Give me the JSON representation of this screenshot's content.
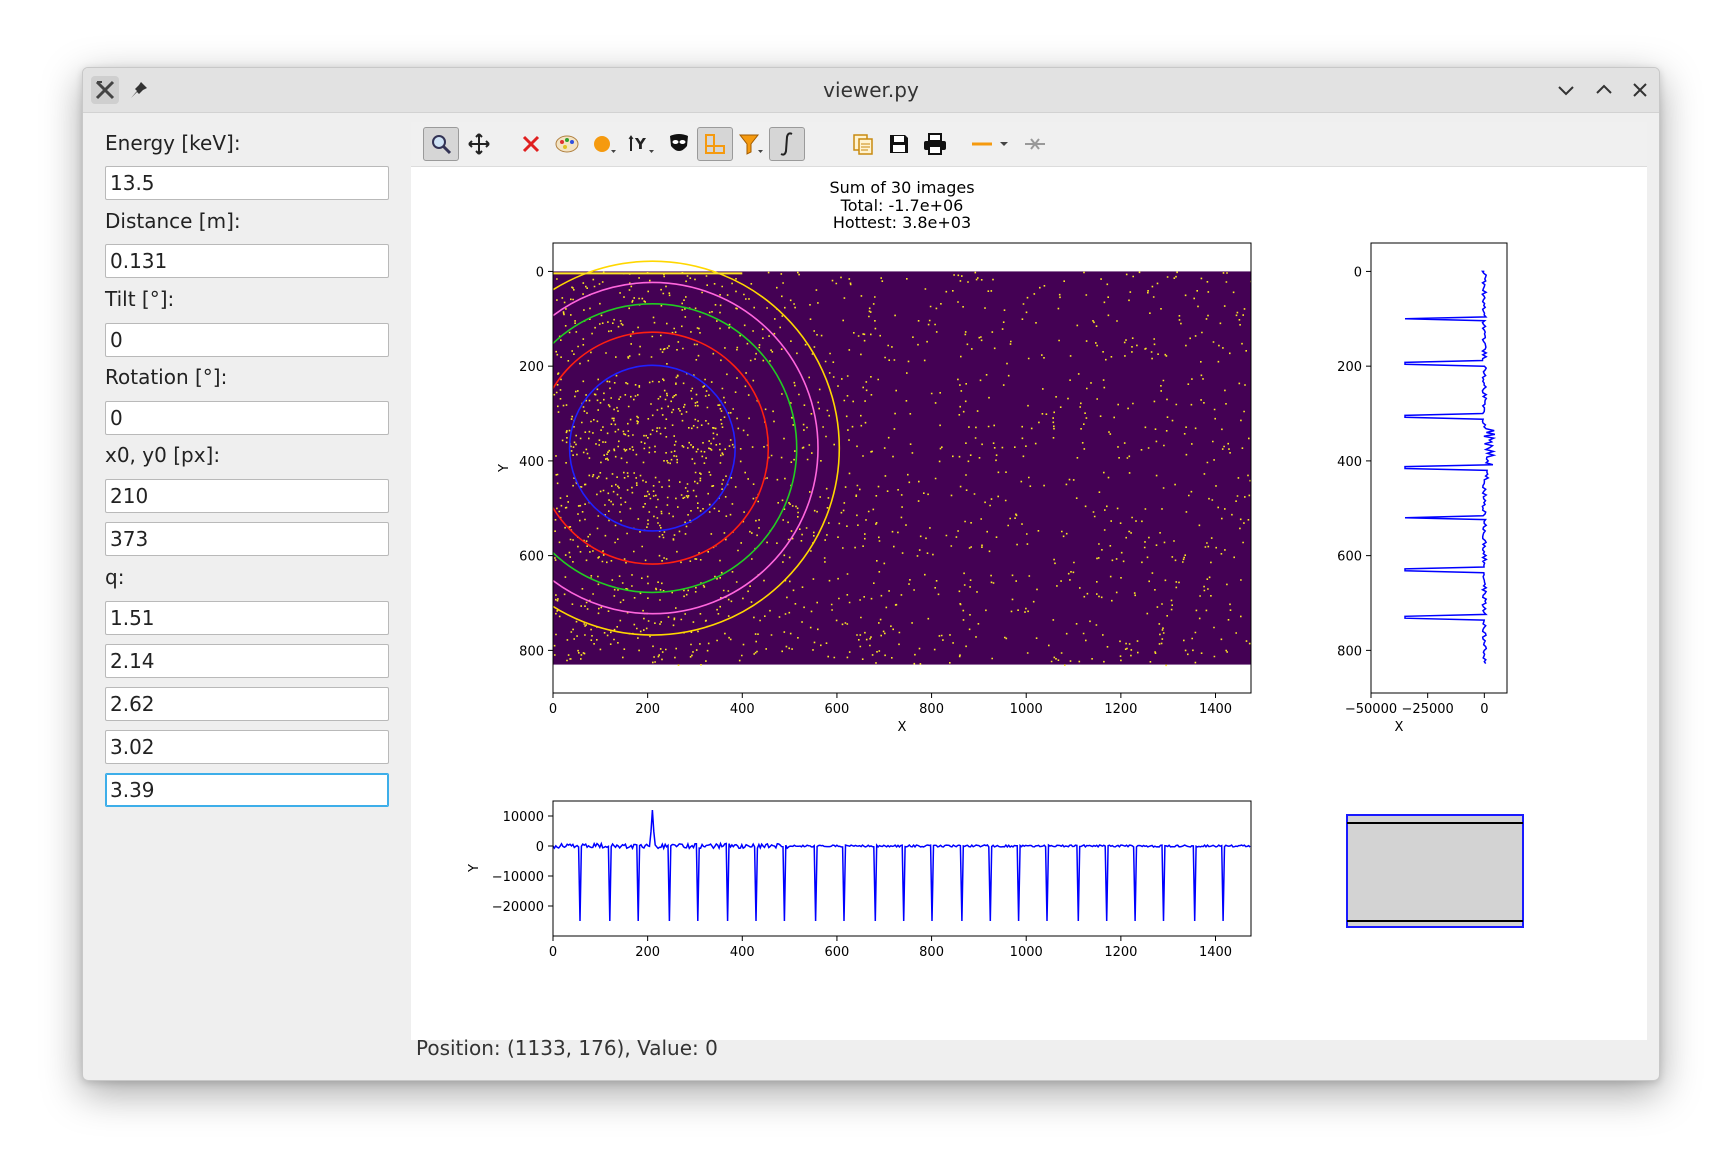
{
  "window": {
    "title": "viewer.py"
  },
  "titlebar_icons": [
    "app-icon",
    "pin-icon"
  ],
  "window_controls": [
    "minimize-icon",
    "maximize-icon",
    "close-icon"
  ],
  "fields": {
    "energy": {
      "label": "Energy [keV]:",
      "value": "13.5"
    },
    "distance": {
      "label": "Distance [m]:",
      "value": "0.131"
    },
    "tilt": {
      "label": "Tilt [°]:",
      "value": "0"
    },
    "rotation": {
      "label": "Rotation [°]:",
      "value": "0"
    },
    "center": {
      "label": "x0, y0 [px]:",
      "x0": "210",
      "y0": "373"
    },
    "q": {
      "label": "q:",
      "values": [
        "1.51",
        "2.14",
        "2.62",
        "3.02",
        "3.39"
      ]
    }
  },
  "toolbar": {
    "tools": [
      "zoom-icon",
      "pan-icon",
      "reset-icon",
      "colormap-icon",
      "marker-icon",
      "y-axis-icon",
      "mask-icon",
      "aspect-icon",
      "filter-icon",
      "integrate-icon",
      "copy-icon",
      "save-icon",
      "print-icon",
      "line-style-icon",
      "crosshair-icon"
    ],
    "active": [
      "zoom-icon",
      "aspect-icon",
      "integrate-icon"
    ]
  },
  "status": {
    "text": "Position: (1133, 176), Value: 0"
  },
  "chart_data": [
    {
      "type": "heatmap",
      "title": "Sum of 30 images",
      "subtitle_lines": [
        "Total: -1.7e+06",
        "Hottest: 3.8e+03"
      ],
      "xlabel": "X",
      "ylabel": "Y",
      "xlim": [
        0,
        1475
      ],
      "ylim": [
        890,
        -60
      ],
      "xticks": [
        0,
        200,
        400,
        600,
        800,
        1000,
        1200,
        1400
      ],
      "yticks": [
        0,
        200,
        400,
        600,
        800
      ],
      "image_extent": {
        "x": [
          0,
          1475
        ],
        "y": [
          0,
          830
        ]
      },
      "gap_rows": [
        [
          195,
          212
        ],
        [
          405,
          422
        ],
        [
          615,
          632
        ]
      ],
      "colors": {
        "background": "#440154",
        "points": "#fde725"
      },
      "rings": [
        {
          "q": 1.51,
          "radius": 175,
          "color": "#2020ff"
        },
        {
          "q": 2.14,
          "radius": 245,
          "color": "#ff2010"
        },
        {
          "q": 2.62,
          "radius": 305,
          "color": "#22cc22"
        },
        {
          "q": 3.02,
          "radius": 350,
          "color": "#ff66dd"
        },
        {
          "q": 3.39,
          "radius": 395,
          "color": "#ffd700"
        }
      ],
      "center": {
        "x": 210,
        "y": 373
      }
    },
    {
      "type": "line",
      "xlabel": "X",
      "ylabel": "",
      "xlim": [
        -50000,
        10000
      ],
      "xticks": [
        -50000,
        -25000,
        0
      ],
      "xtick_labels": [
        "−50000",
        "−25000",
        "0"
      ],
      "yticks": [
        0,
        200,
        400,
        600,
        800
      ],
      "ytick_labels": [
        "0",
        "200",
        "400",
        "600",
        "800"
      ],
      "series": [
        {
          "color": "#0000ff",
          "baseline": 0,
          "dips": [
            100,
            195,
            305,
            415,
            520,
            630,
            730
          ],
          "dip_value": -35000
        }
      ]
    },
    {
      "type": "line",
      "xlabel": "",
      "ylabel": "Y",
      "xlim": [
        0,
        1475
      ],
      "ylim": [
        -30000,
        15000
      ],
      "xticks": [
        0,
        200,
        400,
        600,
        800,
        1000,
        1200,
        1400
      ],
      "yticks": [
        10000,
        0,
        -10000,
        -20000
      ],
      "ytick_labels": [
        "10000",
        "0",
        "−10000",
        "−20000"
      ],
      "series": [
        {
          "color": "#0000ff",
          "baseline": 0,
          "dips": [
            58,
            120,
            180,
            245,
            305,
            370,
            430,
            490,
            555,
            615,
            680,
            740,
            800,
            865,
            925,
            985,
            1045,
            1110,
            1170,
            1230,
            1290,
            1355,
            1415
          ],
          "dip_value": -25000,
          "peak": {
            "x": 210,
            "value": 12000
          }
        }
      ]
    }
  ]
}
